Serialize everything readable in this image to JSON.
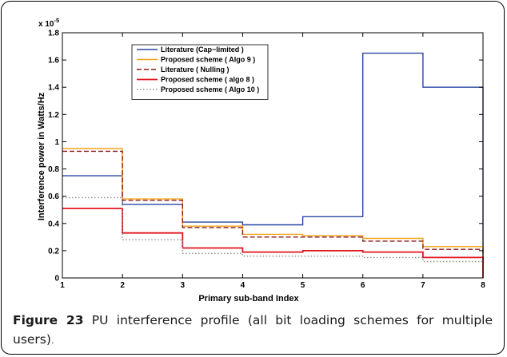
{
  "chart_data": {
    "type": "line",
    "step": true,
    "xlabel": "Primary sub-band Index",
    "ylabel": "Interference power in Watts/Hz",
    "y_exponent_label": "x 10",
    "y_exponent_power": "-5",
    "xlim": [
      1,
      8
    ],
    "ylim": [
      0,
      1.8
    ],
    "x_ticks": [
      "1",
      "2",
      "3",
      "4",
      "5",
      "6",
      "7",
      "8"
    ],
    "y_ticks": [
      "0",
      "0.2",
      "0.4",
      "0.6",
      "0.8",
      "1",
      "1.2",
      "1.4",
      "1.6",
      "1.8"
    ],
    "grid": false,
    "legend_position": "top-left",
    "series": [
      {
        "name": "Literature (Cap−limited )",
        "color": "#2846a0",
        "dash": "solid",
        "values": [
          0.75,
          0.54,
          0.41,
          0.39,
          0.45,
          1.65,
          1.4
        ]
      },
      {
        "name": "Proposed scheme ( Algo 9 )",
        "color": "#f4a21c",
        "dash": "solid",
        "values": [
          0.95,
          0.58,
          0.38,
          0.32,
          0.31,
          0.29,
          0.23
        ]
      },
      {
        "name": "Literature ( Nulling )",
        "color": "#8b1a1a",
        "dash": "dashed",
        "values": [
          0.93,
          0.57,
          0.37,
          0.3,
          0.3,
          0.27,
          0.21
        ]
      },
      {
        "name": "Proposed scheme ( algo 8 )",
        "color": "#e0141e",
        "dash": "solid",
        "values": [
          0.51,
          0.33,
          0.22,
          0.19,
          0.2,
          0.19,
          0.15
        ]
      },
      {
        "name": "Proposed scheme ( Algo 10 )",
        "color": "#8c8c8c",
        "dash": "dotted",
        "values": [
          0.59,
          0.28,
          0.18,
          0.16,
          0.16,
          0.15,
          0.12
        ]
      }
    ]
  },
  "caption": {
    "label": "Figure 23",
    "text": " PU interference profile (all bit loading schemes for multiple users)",
    "period": "."
  }
}
